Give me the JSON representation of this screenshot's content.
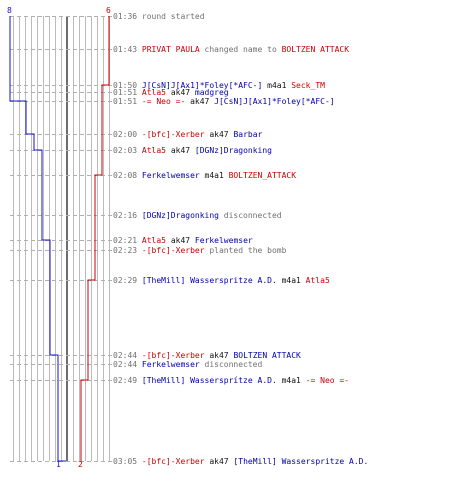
{
  "colors": {
    "blue_team": "#1515c8",
    "red_team": "#cc0000",
    "grid": "#bbbbbb",
    "dash": "#b0b0b0",
    "center": "#6e6e6e",
    "time": "#707070"
  },
  "axis_labels": {
    "blue_top": "8",
    "red_top": "6",
    "blue_bottom": "1",
    "red_bottom": "2"
  },
  "events": [
    {
      "time": "01:36",
      "parts": [
        {
          "c": "plain",
          "t": "round started"
        }
      ]
    },
    {
      "time": "01:43",
      "parts": [
        {
          "c": "red",
          "t": "PRIVAT PAULA"
        },
        {
          "c": "plain",
          "t": " changed name to "
        },
        {
          "c": "red",
          "t": "BOLTZEN ATTACK"
        }
      ]
    },
    {
      "time": "01:50",
      "parts": [
        {
          "c": "blue",
          "t": "J[CsN]J[Ax1]*Foley[*AFC-]"
        },
        {
          "c": "blk",
          "t": " m4a1 "
        },
        {
          "c": "red",
          "t": "Seck_TM"
        }
      ]
    },
    {
      "time": "01:51",
      "parts": [
        {
          "c": "red",
          "t": "Atla5"
        },
        {
          "c": "blk",
          "t": " ak47 "
        },
        {
          "c": "blue",
          "t": "madgreg"
        }
      ]
    },
    {
      "time": "01:51",
      "parts": [
        {
          "c": "red",
          "t": "-= Neo =-"
        },
        {
          "c": "blk",
          "t": " ak47 "
        },
        {
          "c": "blue",
          "t": "J[CsN]J[Ax1]*Foley[*AFC-]"
        }
      ]
    },
    {
      "time": "02:00",
      "parts": [
        {
          "c": "red",
          "t": "-[bfc]-Xerber"
        },
        {
          "c": "blk",
          "t": " ak47 "
        },
        {
          "c": "blue",
          "t": "Barbar"
        }
      ]
    },
    {
      "time": "02:03",
      "parts": [
        {
          "c": "red",
          "t": "Atla5"
        },
        {
          "c": "blk",
          "t": " ak47 "
        },
        {
          "c": "blue",
          "t": "[DGNz]Dragonking"
        }
      ]
    },
    {
      "time": "02:08",
      "parts": [
        {
          "c": "blue",
          "t": "Ferkelwemser"
        },
        {
          "c": "blk",
          "t": " m4a1 "
        },
        {
          "c": "red",
          "t": "BOLTZEN_ATTACK"
        }
      ]
    },
    {
      "time": "02:16",
      "parts": [
        {
          "c": "blue",
          "t": "[DGNz]Dragonking"
        },
        {
          "c": "plain",
          "t": " disconnected"
        }
      ]
    },
    {
      "time": "02:21",
      "parts": [
        {
          "c": "red",
          "t": "Atla5"
        },
        {
          "c": "blk",
          "t": " ak47 "
        },
        {
          "c": "blue",
          "t": "Ferkelwemser"
        }
      ]
    },
    {
      "time": "02:23",
      "parts": [
        {
          "c": "red",
          "t": "-[bfc]-Xerber"
        },
        {
          "c": "plain",
          "t": " planted the bomb"
        }
      ]
    },
    {
      "time": "02:29",
      "parts": [
        {
          "c": "blue",
          "t": "[TheMill] Wasserspritze A.D."
        },
        {
          "c": "blk",
          "t": " m4a1 "
        },
        {
          "c": "red",
          "t": "Atla5"
        }
      ]
    },
    {
      "time": "02:44",
      "parts": [
        {
          "c": "red",
          "t": "-[bfc]-Xerber"
        },
        {
          "c": "blk",
          "t": " ak47 "
        },
        {
          "c": "blue",
          "t": "BOLTZEN ATTACK"
        }
      ]
    },
    {
      "time": "02:44",
      "parts": [
        {
          "c": "blue",
          "t": "Ferkelwemser"
        },
        {
          "c": "plain",
          "t": " disconnected"
        }
      ]
    },
    {
      "time": "02:49",
      "parts": [
        {
          "c": "blue",
          "t": "[TheMill] Wassersprítze A.D."
        },
        {
          "c": "blk",
          "t": " m4a1 "
        },
        {
          "c": "red",
          "t": "-= Neo =-"
        }
      ]
    },
    {
      "time": "03:05",
      "parts": [
        {
          "c": "red",
          "t": "-[bfc]-Xerber"
        },
        {
          "c": "blk",
          "t": " ak47 "
        },
        {
          "c": "blue",
          "t": "[TheMill] Wasserspritze A.D."
        }
      ]
    }
  ],
  "chart_data": {
    "type": "line",
    "title": "",
    "xlabel": "",
    "ylabel": "",
    "x_unit": "alive players",
    "y_unit": "event",
    "series": [
      {
        "color": "#1515c8",
        "start": 8,
        "end": 1,
        "steps": [
          {
            "event": 2,
            "value": 8
          },
          {
            "event": 4,
            "value": 6
          },
          {
            "event": 5,
            "value": 5
          },
          {
            "event": 6,
            "value": 4
          },
          {
            "event": 9,
            "value": 3
          },
          {
            "event": 12,
            "value": 2
          },
          {
            "event": 15,
            "value": 1
          }
        ]
      },
      {
        "color": "#cc0000",
        "start": 6,
        "end": 2,
        "steps": [
          {
            "event": 2,
            "value": 5
          },
          {
            "event": 7,
            "value": 4
          },
          {
            "event": 11,
            "value": 3
          },
          {
            "event": 14,
            "value": 2
          }
        ]
      }
    ]
  }
}
